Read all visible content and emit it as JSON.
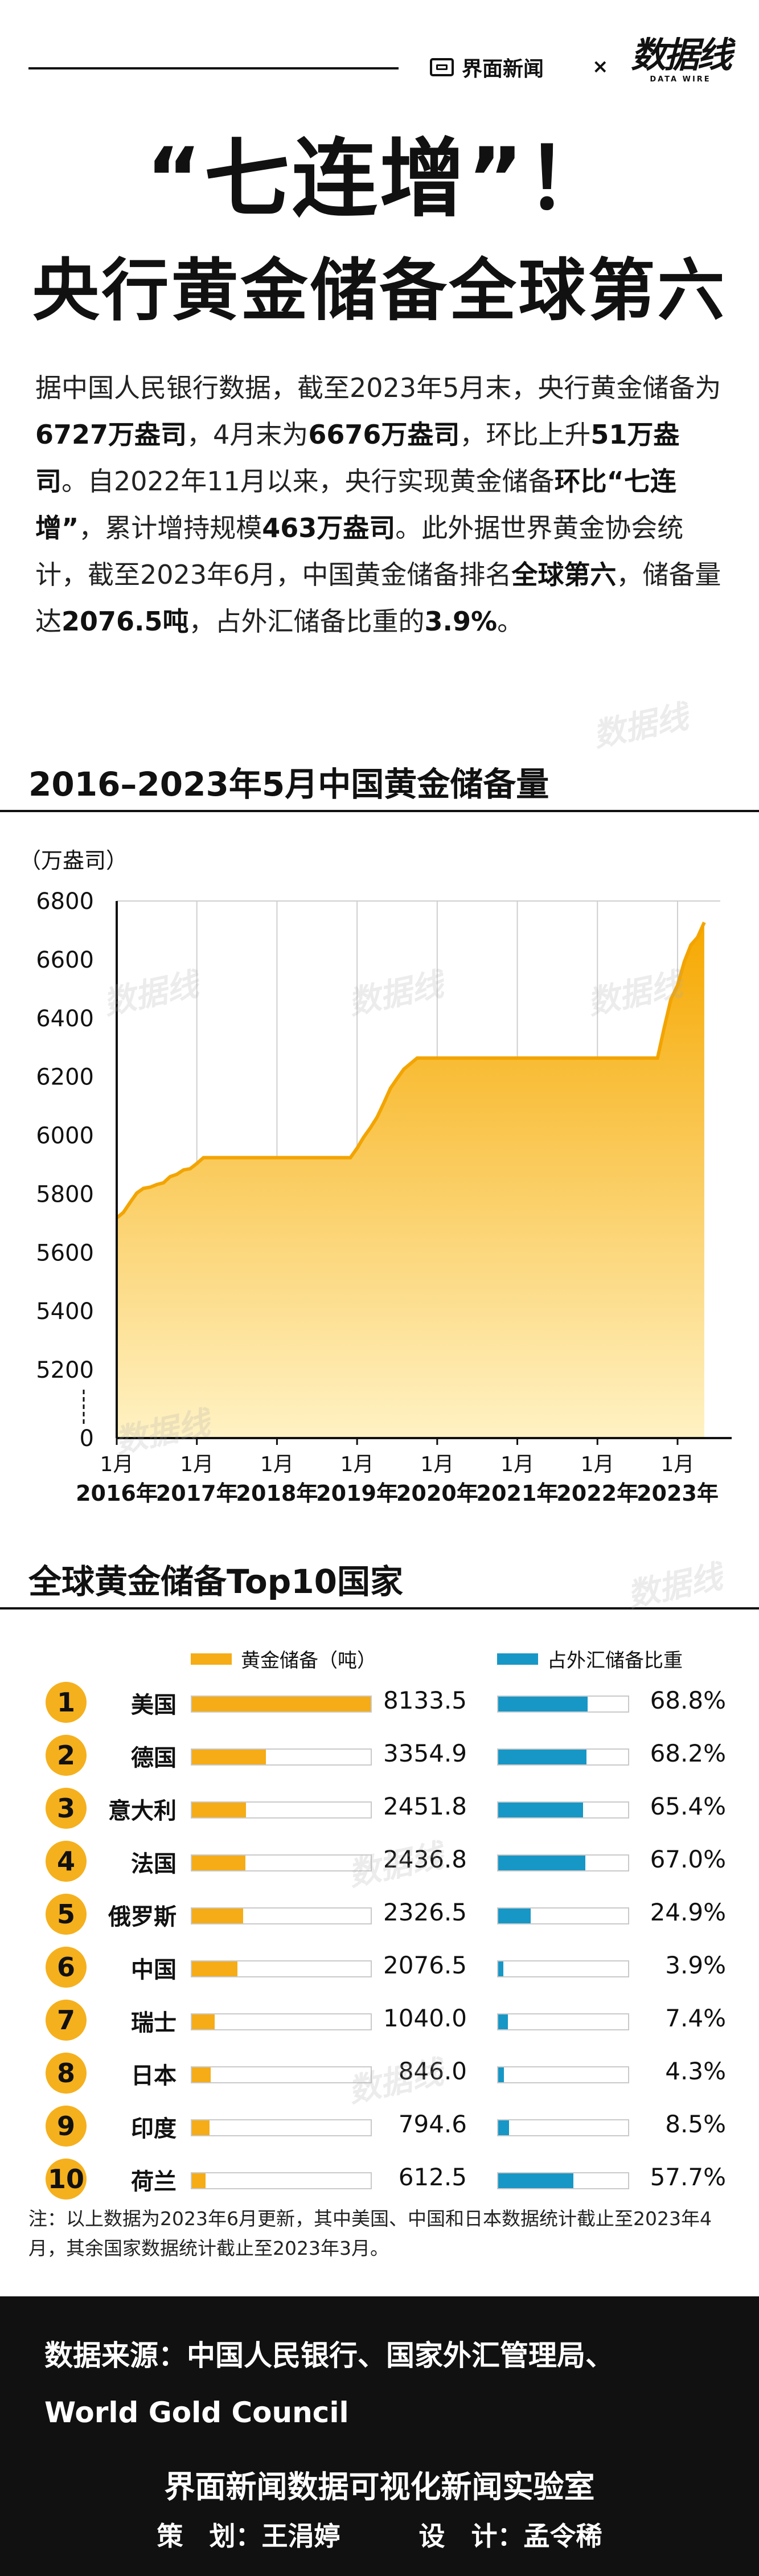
{
  "header": {
    "publisher": "界面新闻",
    "separator": "×",
    "brand_cn": "数据线",
    "brand_en": "DATA WIRE"
  },
  "title": {
    "line1": "“七连增”！",
    "line2": "央行黄金储备全球第六"
  },
  "intro": {
    "t1": "据中国人民银行数据，截至2023年5月末，央行黄金储备为",
    "b1": "6727万盎司",
    "t2": "，4月末为",
    "b2": "6676万盎司",
    "t3": "，环比上升",
    "b3": "51万盎司",
    "t4": "。自2022年11月以来，央行实现黄金储备",
    "b4": "环比“七连增”",
    "t5": "，累计增持规模",
    "b5": "463万盎司",
    "t6": "。此外据世界黄金协会统计，截至2023年6月，中国黄金储备排名",
    "b6": "全球第六",
    "t7": "，储备量达",
    "b7": "2076.5吨",
    "t8": "，占外汇储备比重的",
    "b8": "3.9%",
    "t9": "。"
  },
  "section1": {
    "title": "2016–2023年5月中国黄金储备量"
  },
  "chart_data": {
    "type": "area",
    "ylabel": "（万盎司）",
    "ylim": [
      5000,
      6800
    ],
    "yticks": [
      6800,
      6600,
      6400,
      6200,
      6000,
      5800,
      5600,
      5400,
      5200
    ],
    "y_zero_label": "0",
    "y_axis_break": true,
    "x_month_label": "1月",
    "x_year_labels": [
      "2016年",
      "2017年",
      "2018年",
      "2019年",
      "2020年",
      "2021年",
      "2022年",
      "2023年"
    ],
    "grid": "vertical",
    "colors": {
      "fill_top": "#f6a800",
      "fill_bottom": "#fff2c4",
      "line": "#f3a400"
    },
    "series": [
      {
        "x": [
          "2016-01",
          "2016-02",
          "2016-03",
          "2016-04",
          "2016-05",
          "2016-06",
          "2016-07",
          "2016-08",
          "2016-09",
          "2016-10",
          "2016-11",
          "2016-12",
          "2017-01",
          "2017-02",
          "2017-03",
          "2017-04",
          "2017-05",
          "2017-06",
          "2017-07",
          "2017-08",
          "2017-09",
          "2017-10",
          "2017-11",
          "2017-12",
          "2018-01",
          "2018-02",
          "2018-03",
          "2018-04",
          "2018-05",
          "2018-06",
          "2018-07",
          "2018-08",
          "2018-09",
          "2018-10",
          "2018-11",
          "2018-12",
          "2019-01",
          "2019-02",
          "2019-03",
          "2019-04",
          "2019-05",
          "2019-06",
          "2019-07",
          "2019-08",
          "2019-09",
          "2019-10",
          "2019-11",
          "2019-12",
          "2020-01",
          "2020-06",
          "2020-12",
          "2021-06",
          "2021-12",
          "2022-06",
          "2022-10",
          "2022-11",
          "2022-12",
          "2023-01",
          "2023-02",
          "2023-03",
          "2023-04",
          "2023-05"
        ],
        "values": [
          5718,
          5737,
          5771,
          5803,
          5819,
          5823,
          5832,
          5838,
          5859,
          5867,
          5882,
          5886,
          5904,
          5924,
          5924,
          5924,
          5924,
          5924,
          5924,
          5924,
          5924,
          5924,
          5924,
          5924,
          5924,
          5924,
          5924,
          5924,
          5924,
          5924,
          5924,
          5924,
          5924,
          5924,
          5924,
          5924,
          5956,
          5994,
          6026,
          6062,
          6110,
          6161,
          6194,
          6226,
          6245,
          6264,
          6264,
          6264,
          6264,
          6264,
          6264,
          6264,
          6264,
          6264,
          6264,
          6367,
          6464,
          6512,
          6592,
          6650,
          6676,
          6727
        ]
      }
    ]
  },
  "section2": {
    "title": "全球黄金储备Top10国家"
  },
  "table": {
    "legend_gold": "黄金储备（吨）",
    "legend_ratio": "占外汇储备比重",
    "gold_max": 8133.5,
    "rows": [
      {
        "rank": "1",
        "country": "美国",
        "gold": "8133.5",
        "gold_value": 8133.5,
        "ratio": "68.8%",
        "ratio_value": 68.8
      },
      {
        "rank": "2",
        "country": "德国",
        "gold": "3354.9",
        "gold_value": 3354.9,
        "ratio": "68.2%",
        "ratio_value": 68.2
      },
      {
        "rank": "3",
        "country": "意大利",
        "gold": "2451.8",
        "gold_value": 2451.8,
        "ratio": "65.4%",
        "ratio_value": 65.4
      },
      {
        "rank": "4",
        "country": "法国",
        "gold": "2436.8",
        "gold_value": 2436.8,
        "ratio": "67.0%",
        "ratio_value": 67.0
      },
      {
        "rank": "5",
        "country": "俄罗斯",
        "gold": "2326.5",
        "gold_value": 2326.5,
        "ratio": "24.9%",
        "ratio_value": 24.9
      },
      {
        "rank": "6",
        "country": "中国",
        "gold": "2076.5",
        "gold_value": 2076.5,
        "ratio": "3.9%",
        "ratio_value": 3.9
      },
      {
        "rank": "7",
        "country": "瑞士",
        "gold": "1040.0",
        "gold_value": 1040.0,
        "ratio": "7.4%",
        "ratio_value": 7.4
      },
      {
        "rank": "8",
        "country": "日本",
        "gold": "846.0",
        "gold_value": 846.0,
        "ratio": "4.3%",
        "ratio_value": 4.3
      },
      {
        "rank": "9",
        "country": "印度",
        "gold": "794.6",
        "gold_value": 794.6,
        "ratio": "8.5%",
        "ratio_value": 8.5
      },
      {
        "rank": "10",
        "country": "荷兰",
        "gold": "612.5",
        "gold_value": 612.5,
        "ratio": "57.7%",
        "ratio_value": 57.7
      }
    ]
  },
  "note": "注：以上数据为2023年6月更新，其中美国、中国和日本数据统计截止至2023年4月，其余国家数据统计截止至2023年3月。",
  "footer": {
    "source_line1": "数据来源：中国人民银行、国家外汇管理局、",
    "source_line2": "World Gold Council",
    "lab": "界面新闻数据可视化新闻实验室",
    "credits": "策　划：王涓婷　　　设　计：孟令稀"
  }
}
